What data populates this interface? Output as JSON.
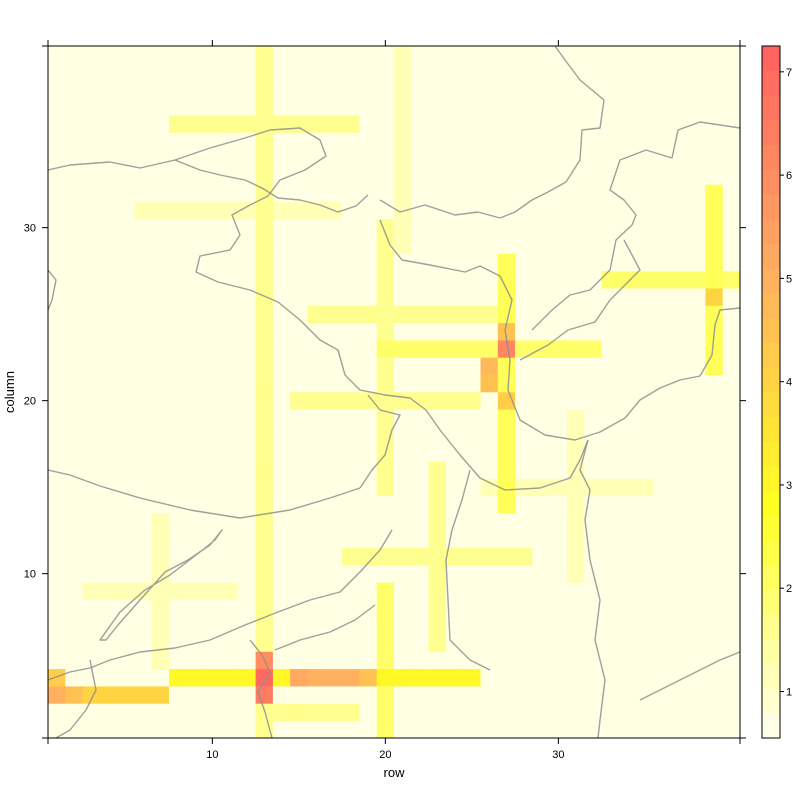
{
  "chart_data": {
    "type": "heatmap",
    "xlabel": "row",
    "ylabel": "column",
    "xlim": [
      0.5,
      40.5
    ],
    "ylim": [
      0.5,
      40.5
    ],
    "x_ticks": [
      10,
      20,
      30
    ],
    "y_ticks": [
      10,
      20,
      30
    ],
    "colorbar": {
      "ticks": [
        1,
        2,
        3,
        4,
        5,
        6,
        7
      ],
      "range": [
        0.55,
        7.25
      ],
      "steps": 28,
      "colors": [
        "#fffff2",
        "#ffff20",
        "#ffb060",
        "#ff6060"
      ]
    },
    "background_value": 0.7,
    "line_features": [
      {
        "x": 13,
        "y_range": [
          1,
          40
        ],
        "base_value": 1.6
      },
      {
        "x": 19.5,
        "y_range": [
          15,
          30
        ],
        "base_value": 1.6
      },
      {
        "x": 26.5,
        "y_range": [
          14,
          28
        ],
        "base_value": 2.2
      },
      {
        "x": 39,
        "y_range": [
          22,
          32
        ],
        "base_value": 2.2
      },
      {
        "x": 7,
        "y_range": [
          5,
          13
        ],
        "base_value": 1.2
      },
      {
        "x": 23,
        "y_range": [
          6,
          16
        ],
        "base_value": 1.6
      },
      {
        "x": 20,
        "y_range": [
          1,
          9
        ],
        "base_value": 2.0
      },
      {
        "x": 31,
        "y_range": [
          10,
          19
        ],
        "base_value": 1.2
      },
      {
        "x": 20.5,
        "y_range": [
          29,
          40
        ],
        "base_value": 1.2
      },
      {
        "y": 36,
        "x_range": [
          8,
          18
        ],
        "base_value": 1.6
      },
      {
        "y": 31,
        "x_range": [
          6,
          17
        ],
        "base_value": 1.2
      },
      {
        "y": 25,
        "x_range": [
          16,
          27
        ],
        "base_value": 1.6
      },
      {
        "y": 20,
        "x_range": [
          15,
          25
        ],
        "base_value": 1.6
      },
      {
        "y": 15,
        "x_range": [
          26,
          35
        ],
        "base_value": 1.2
      },
      {
        "y": 22.5,
        "x_range": [
          20,
          32
        ],
        "base_value": 2.0
      },
      {
        "y": 11,
        "x_range": [
          18,
          28
        ],
        "base_value": 1.6
      },
      {
        "y": 9,
        "x_range": [
          3,
          11
        ],
        "base_value": 1.2
      },
      {
        "y": 4,
        "x_range": [
          8,
          25
        ],
        "base_value": 3.0
      },
      {
        "y": 3,
        "x_range": [
          1,
          7
        ],
        "base_value": 4.0
      },
      {
        "y": 27,
        "x_range": [
          33,
          40
        ],
        "base_value": 2.0
      },
      {
        "y": 1.5,
        "x_range": [
          13,
          18
        ],
        "base_value": 1.6
      }
    ],
    "hotspots": [
      {
        "x": 13,
        "y": 4,
        "value": 7
      },
      {
        "x": 13,
        "y": 3,
        "value": 6.5
      },
      {
        "x": 13,
        "y": 5,
        "value": 6
      },
      {
        "x": 27,
        "y": 23,
        "value": 6.2
      },
      {
        "x": 26,
        "y": 22,
        "value": 4.8
      },
      {
        "x": 26,
        "y": 21,
        "value": 4.5
      },
      {
        "x": 27,
        "y": 20,
        "value": 4.2
      },
      {
        "x": 1,
        "y": 3,
        "value": 5
      },
      {
        "x": 1,
        "y": 4,
        "value": 4.2
      },
      {
        "x": 2,
        "y": 3,
        "value": 4.5
      },
      {
        "x": 15,
        "y": 4,
        "value": 5.2
      },
      {
        "x": 16,
        "y": 4,
        "value": 5.0
      },
      {
        "x": 17,
        "y": 4,
        "value": 5.0
      },
      {
        "x": 18,
        "y": 4,
        "value": 5.0
      },
      {
        "x": 19,
        "y": 4,
        "value": 4.5
      },
      {
        "x": 27,
        "y": 24,
        "value": 4.5
      },
      {
        "x": 39,
        "y": 26,
        "value": 4.0
      }
    ]
  }
}
